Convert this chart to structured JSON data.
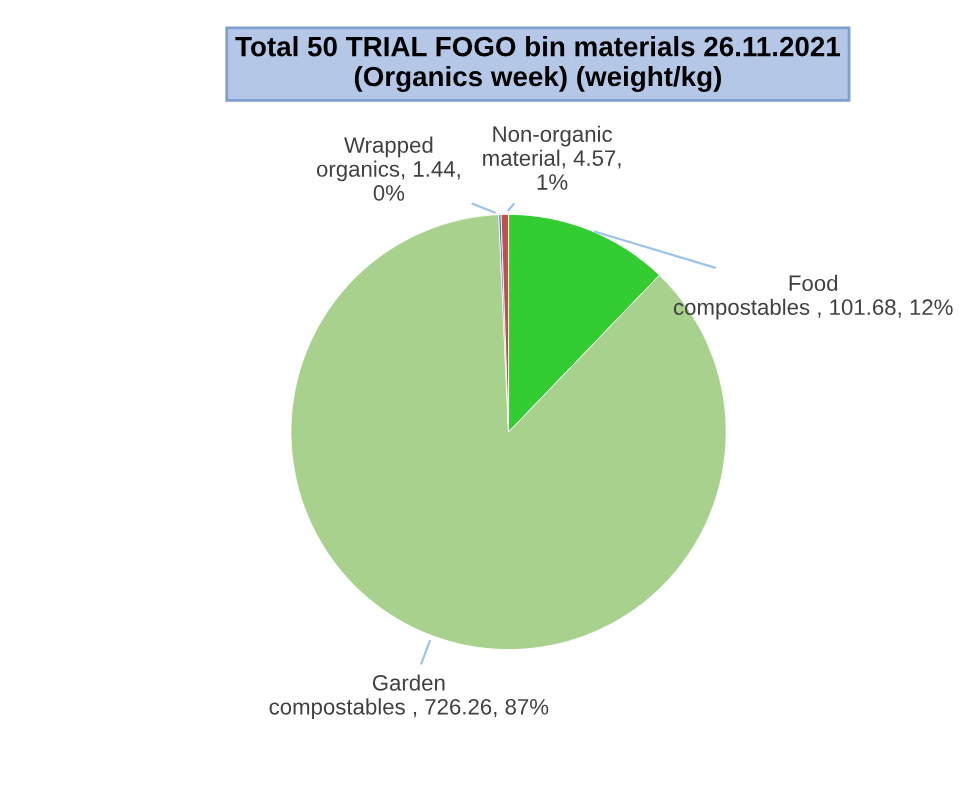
{
  "chart_data": {
    "type": "pie",
    "title": "Total 50 TRIAL FOGO bin materials 26.11.2021\n(Organics week) (weight/kg)",
    "categories": [
      "Food\ncompostables ",
      "Garden\ncompostables ",
      "Wrapped\norganics",
      "Non-organic\nmaterial"
    ],
    "values": [
      101.68,
      726.26,
      1.44,
      4.57
    ],
    "colors": [
      "#33cc33",
      "#a9d18e",
      "#4472c4",
      "#c0504d"
    ],
    "value_labels": [
      "101.68, 12%",
      "726.26, 87%",
      "1.44,\n0%",
      "4.57,\n1%"
    ],
    "legend": false
  }
}
